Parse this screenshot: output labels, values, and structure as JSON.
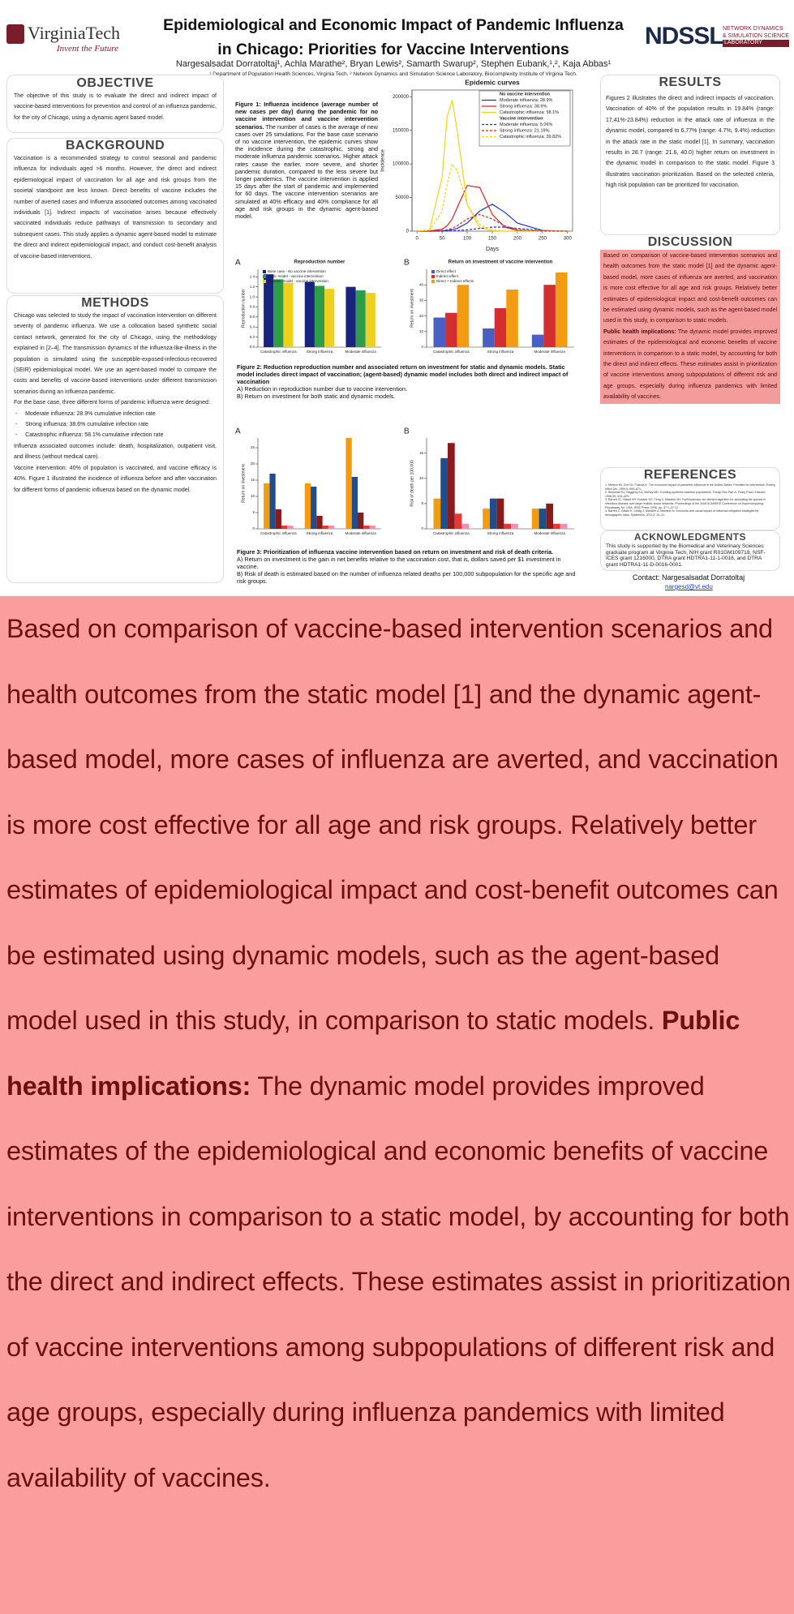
{
  "header": {
    "logo_left": "VirginiaTech",
    "logo_left_tagline": "Invent the Future",
    "title_line_1": "Epidemiological and Economic Impact of Pandemic Influenza",
    "title_line_2": "in Chicago: Priorities for Vaccine Interventions",
    "authors": "Nargesalsadat Dorratoltaj¹, Achla Marathe², Bryan Lewis², Samarth Swarup², Stephen Eubank,¹,², Kaja Abbas¹",
    "affiliations": "¹ Department of Population Health Sciences, Virginia Tech. ² Network Dynamics and Simulation Science Laboratory, Biocomplexity Institute of Virginia Tech.",
    "logo_right": "NDSSL",
    "logo_right_line_1": "NETWORK DYNAMICS",
    "logo_right_line_2": "& SIMULATION SCIENCE",
    "logo_right_line_3": "LABORATORY"
  },
  "objective": {
    "heading": "OBJECTIVE",
    "text": "The objective of this study is to evaluate the direct and indirect impact of vaccine-based interventions for prevention and control of an influenza pandemic, for the city of Chicago, using a dynamic agent based model."
  },
  "background": {
    "heading": "BACKGROUND",
    "text": "Vaccination is a recommended strategy to control seasonal and pandemic influenza for individuals aged >6 months. However, the direct and indirect epidemiological impact of vaccination for all age and risk groups from the societal standpoint are less known. Direct benefits of vaccine includes the number of averted cases and Influenza associated outcomes among vaccinated individuals [1]. Indirect impacts of vaccination arises because effectively vaccinated individuals reduce pathways of transmission to secondary and subsequent cases. This study applies a dynamic agent-based model to estimate the direct and indirect epidemiological impact, and conduct cost-benefit analysis of vaccine-based interventions."
  },
  "methods": {
    "heading": "METHODS",
    "paragraph_1": "Chicago was selected to study the impact of vaccination intervention on different severity of pandemic influenza. We use a collocation based synthetic social contact network, generated for the city of Chicago, using the methodology explained in [2–4]. The transmission dynamics of the influenza-like-illness in the population is simulated using the susceptible-exposed-infectious-recovered (SEIR) epidemiological model. We use an agent-based model to compare the costs and benefits of vaccine-based interventions under different transmission scenarios during an influenza pandemic.",
    "paragraph_2": "For the base case, three different forms of pandemic influenza were designed:",
    "list": [
      "Moderate influenza: 28.9% cumulative infection rate",
      "Strong influenza: 38.6% cumulative infection rate",
      "Catastrophic influenza: 58.1% cumulative infection rate"
    ],
    "paragraph_3": "Influenza associated outcomes include: death, hospitalization, outpatient visit, and illness (without medical care).",
    "paragraph_4": "Vaccine intervention: 40% of population is vaccinated, and vaccine efficacy is 40%. Figure 1 illustrated the incidence of influenza before and after vaccination for different forms of pandemic influenza based on the dynamic model."
  },
  "figure_1": {
    "title": "Figure 1: Influenza incidence (average number of new cases per day) during the pandemic for no vaccine intervention and vaccine intervention scenarios.",
    "text": "The number of cases is the average of new cases over 25 simulations. For the base case scenario of no vaccine intervention, the epidemic curves show the incidence during the catastrophic, strong and moderate influenza pandemic scenarios. Higher attack rates cause the earlier, more severe, and shorter pandemic duration, compared to the less severe but longer pandemics. The vaccine intervention is applied 15 days after the start of pandemic and implemented for 60 days. The vaccine intervention scenarios are simulated at 40% efficacy and 40% compliance for all age and risk groups in the dynamic agent-based model."
  },
  "figure_2": {
    "title": "Figure 2: Reduction reproduction number and associated return on investment for static and dynamic models. Static model includes direct impact of vaccination; (agent-based) dynamic model includes both direct and indirect impact of vaccination",
    "line_a": "A) Reduction in reproduction number due to vaccine intervention.",
    "line_b": "B) Return on investment for both static and dynamic models."
  },
  "figure_3": {
    "title": "Figure 3: Prioritization of influenza vaccine intervention based on return on investment and risk of death criteria.",
    "line_a": "A) Return on investment is the gain in net benefits relative to the vaccination cost, that is, dollars saved per $1 investment in vaccine.",
    "line_b": "B) Risk of death is estimated based on the number of influenza related deaths per 100,000 subpopulation for the specific age and risk groups."
  },
  "results": {
    "heading": "RESULTS",
    "text": "Figures 2 illustrates the direct and indirect impacts of vaccination. Vaccination of 40% of the population results in 19.84% (range: 17.41%-23.84%) reduction in the attack rate of influenza in the dynamic model, compared to 6.77% (range: 4.7%, 9.4%) reduction in the attack rate in the static model [1]. In summary, vaccination results in 28.7 (range: 21.6, 40.0) higher return on investment in the dynamic model in comparison to the static model. Figure 3 illustrates vaccination prioritization. Based on the selected criteria, high risk population can be prioritized for vaccination."
  },
  "discussion": {
    "heading": "DISCUSSION",
    "text_1": "Based on comparison of vaccine-based intervention scenarios and health outcomes from the static model [1] and the dynamic agent-based model, more cases of influenza are averted, and vaccination is more cost effective for all age and risk groups. Relatively better estimates of epidemiological impact and cost-benefit outcomes can be estimated using dynamic models, such as the agent-based model used in this study, in comparison to static models.",
    "label": "Public health implications:",
    "text_2": " The dynamic model provides improved estimates of the epidemiological and economic benefits of vaccine interventions in comparison to a static model, by accounting for both the direct and indirect effects. These estimates assist in prioritization of vaccine interventions among subpopulations of different risk and age groups, especially during influenza pandemics with limited availability of vaccines."
  },
  "references": {
    "heading": "REFERENCES",
    "items": [
      "1. Meltzer MI, Cox NJ, Fukuda K. The economic impact of pandemic influenza in the United States: Priorities for intervention. Emerg Infect Dis. 1999;5: 659–671.",
      "2. Beckman RJ, Baggerly KA, McKay MD. Creating synthetic baseline populations. Transp Res Part A: Policy Pract. Elsevier; 1996;30: 415–429.",
      "3. Barrett CL, Bisset KR, Eubank SG, Feng X, Marathe MV. EpiSimdemics: An efficient algorithm for simulating the spread of infectious disease over large realistic social networks. Proceedings of the 2008 ACM/IEEE Conference on Supercomputing. Piscataway, NJ, USA: IEEE Press; 2008. pp. 37:1–37:12.",
      "4. Barrett C, Bisset K, Leidig J, Marathe A, Marathe M. Economic and social impact of influenza mitigation strategies by demographic class. Epidemics. 2011;3: 19–31."
    ]
  },
  "acknowledgments": {
    "heading": "ACKNOWLEDGMENTS",
    "text": "This study is supported by the Biomedical and Veterinary Sciences graduate program at Virginia Tech, NIH grant R01GM109718, NSF-ICES grant 1216000, DTRA grant HDTRA1-11-1-0016, and DTRA grant HDTRA1-11-D-0016-0001.",
    "contact": "Contact:  Nargesalsadat Dorratoltaj",
    "email": "nargesd@vt.edu"
  },
  "chart_data": [
    {
      "type": "line",
      "title": "Epidemic curves",
      "xlabel": "Days",
      "ylabel": "Incidence",
      "x": [
        0,
        25,
        50,
        60,
        70,
        80,
        100,
        125,
        150,
        175,
        200,
        250,
        300
      ],
      "xlim": [
        -10,
        310
      ],
      "xticks": [
        0,
        50,
        100,
        150,
        200,
        250,
        300
      ],
      "ylim": [
        0,
        210000
      ],
      "yticks": [
        0,
        50000,
        100000,
        150000,
        200000
      ],
      "legend_headers": [
        "No vaccine intervention",
        "Vaccine intervention"
      ],
      "series": [
        {
          "name": "Moderate influenza: 28.9%",
          "color": "#1f2fd0",
          "dash": false,
          "values": [
            0,
            0,
            500,
            1000,
            2000,
            4000,
            12000,
            30000,
            40000,
            28000,
            12000,
            1000,
            0
          ]
        },
        {
          "name": "Strong influenza: 38.6%",
          "color": "#e0201c",
          "dash": false,
          "values": [
            0,
            200,
            3000,
            8000,
            18000,
            35000,
            68000,
            65000,
            25000,
            6000,
            1000,
            0,
            0
          ]
        },
        {
          "name": "Catastrophic influenza: 58.1%",
          "color": "#f2d21a",
          "dash": false,
          "values": [
            0,
            2000,
            80000,
            170000,
            195000,
            150000,
            40000,
            5000,
            500,
            0,
            0,
            0,
            0
          ]
        },
        {
          "name": "Moderate influenza: 5.06%",
          "color": "#1f2fd0",
          "dash": true,
          "values": [
            0,
            0,
            0,
            200,
            400,
            800,
            2000,
            4000,
            6000,
            6000,
            4000,
            1000,
            0
          ]
        },
        {
          "name": "Strong influenza: 21.19%",
          "color": "#e0201c",
          "dash": true,
          "values": [
            0,
            0,
            1000,
            2000,
            4000,
            8000,
            18000,
            25000,
            18000,
            8000,
            2000,
            0,
            0
          ]
        },
        {
          "name": "Catastrophic influenza: 39.82%",
          "color": "#f2d21a",
          "dash": true,
          "values": [
            0,
            1000,
            30000,
            70000,
            100000,
            90000,
            40000,
            10000,
            2000,
            0,
            0,
            0,
            0
          ]
        }
      ]
    },
    {
      "type": "bar",
      "panel": "A",
      "title": "Reproduction number",
      "ylabel": "Reproduction number",
      "categories": [
        "Catastrophic influenza",
        "Strong influenza",
        "Moderate influenza"
      ],
      "ylim": [
        0,
        1.55
      ],
      "yticks": [
        {
          "value": 0,
          "label": "0.0"
        },
        0.2,
        0.4,
        0.6,
        0.8,
        {
          "value": 1,
          "label": "1.0"
        },
        1.2,
        1.4
      ],
      "series": [
        {
          "name": "Base case - No vaccine intervention",
          "color": "#1a237e",
          "values": [
            1.45,
            1.3,
            1.2
          ]
        },
        {
          "name": "Static model - vaccine intervention",
          "color": "#2e9d4a",
          "values": [
            1.35,
            1.22,
            1.13
          ]
        },
        {
          "name": "Dynamic model - vaccine intervention",
          "color": "#f0d01e",
          "values": [
            1.28,
            1.16,
            1.08
          ]
        }
      ]
    },
    {
      "type": "bar",
      "panel": "B",
      "title": "Return on investment of vaccine intervention",
      "ylabel": "Return on investment",
      "categories": [
        "Catastrophic influenza",
        "Strong influenza",
        "Moderate influenza"
      ],
      "ylim": [
        0,
        50
      ],
      "yticks": [
        0,
        10,
        20,
        30,
        40
      ],
      "series": [
        {
          "name": "Direct effect",
          "color": "#4a5fc4",
          "values": [
            19,
            12,
            8
          ]
        },
        {
          "name": "Indirect effect",
          "color": "#d32f2f",
          "values": [
            22,
            25,
            40
          ]
        },
        {
          "name": "Direct + Indirect effects",
          "color": "#f39c12",
          "values": [
            40,
            37,
            48
          ]
        }
      ]
    },
    {
      "type": "bar",
      "panel": "A",
      "ylabel": "Return on investment",
      "categories": [
        "Catastrophic influenza",
        "Strong influenza",
        "Moderate influenza"
      ],
      "ylim": [
        0,
        28
      ],
      "yticks": [
        0,
        5,
        10,
        15,
        20,
        25
      ],
      "series": [
        {
          "color": "#f39c12",
          "values": [
            14,
            14,
            28
          ]
        },
        {
          "color": "#1f4e8c",
          "values": [
            17,
            13,
            16
          ]
        },
        {
          "color": "#8b1a1a",
          "values": [
            6,
            4,
            5
          ]
        },
        {
          "color": "#e53935",
          "values": [
            1,
            1,
            1
          ]
        },
        {
          "color": "#f48fb1",
          "values": [
            1,
            1,
            1
          ]
        }
      ]
    },
    {
      "type": "bar",
      "panel": "B",
      "ylabel": "Risk of death per 100,000",
      "categories": [
        "Catastrophic influenza",
        "Strong influenza",
        "Moderate influenza"
      ],
      "ylim": [
        0,
        18
      ],
      "yticks": [
        0,
        5,
        10,
        15
      ],
      "series": [
        {
          "color": "#f39c12",
          "values": [
            6,
            4,
            4
          ]
        },
        {
          "color": "#1f4e8c",
          "values": [
            14,
            6,
            4
          ]
        },
        {
          "color": "#8b1a1a",
          "values": [
            17,
            6,
            5
          ]
        },
        {
          "color": "#e53935",
          "values": [
            3,
            1,
            1
          ]
        },
        {
          "color": "#f48fb1",
          "values": [
            1,
            1,
            1
          ]
        }
      ]
    }
  ]
}
